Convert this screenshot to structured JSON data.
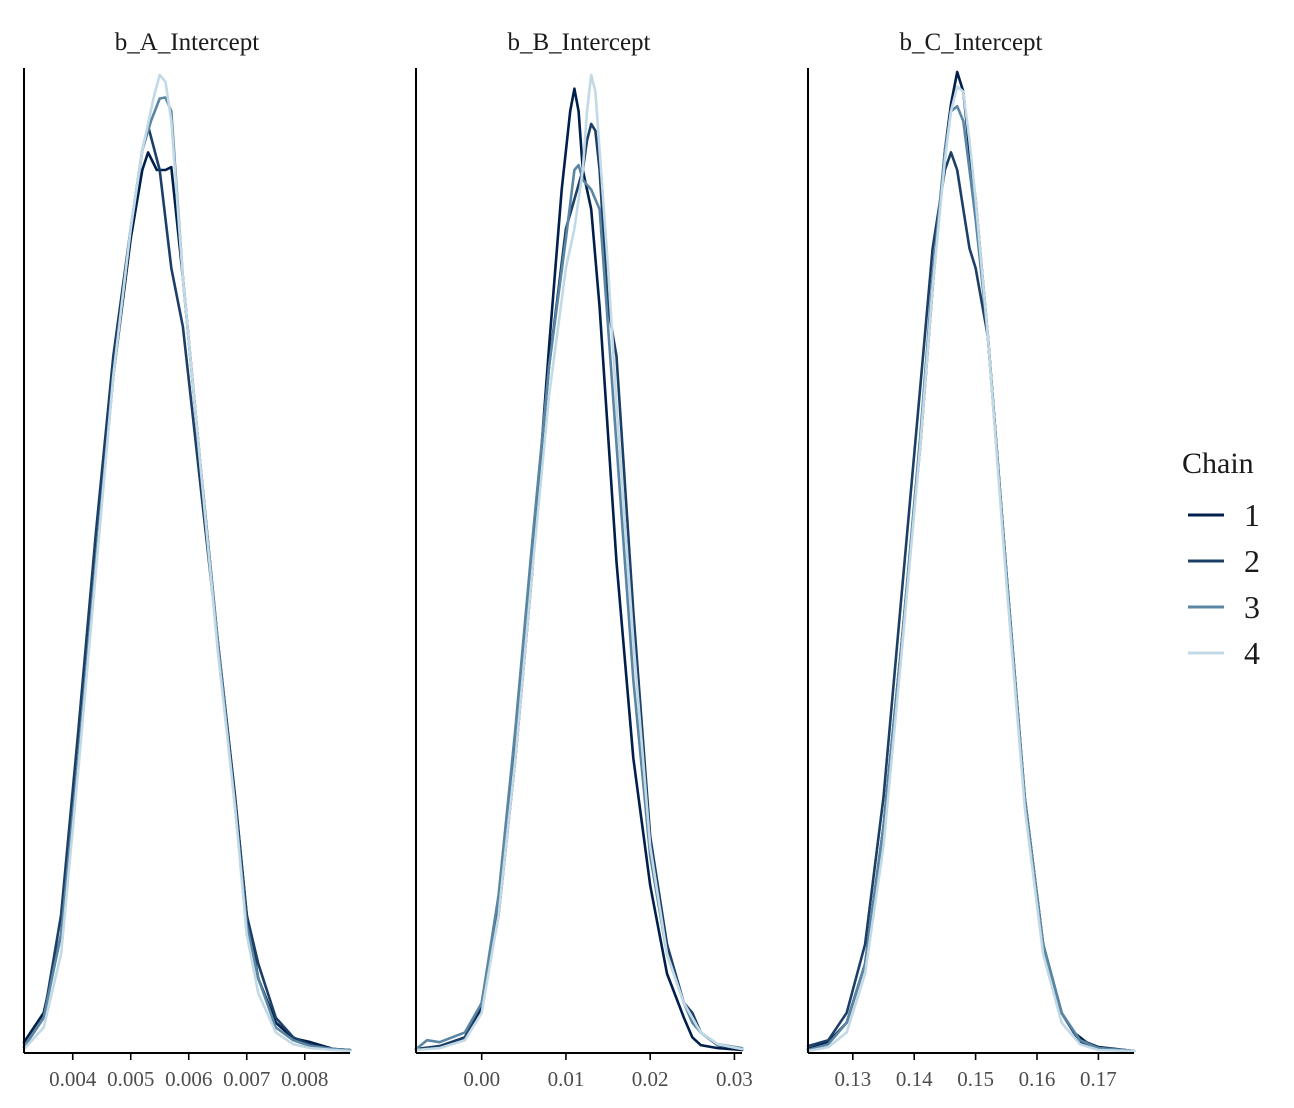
{
  "chart_data": {
    "type": "density",
    "legend": {
      "title": "Chain",
      "position": "right",
      "entries": [
        {
          "label": "1",
          "color": "#011f4b"
        },
        {
          "label": "2",
          "color": "#1b3f66"
        },
        {
          "label": "3",
          "color": "#5a86a3"
        },
        {
          "label": "4",
          "color": "#c2d9e6"
        }
      ]
    },
    "panels": [
      {
        "title": "b_A_Intercept",
        "xlim": [
          0.00316,
          0.00878
        ],
        "ticks": [
          {
            "value": 0.004,
            "label": "0.004"
          },
          {
            "value": 0.005,
            "label": "0.005"
          },
          {
            "value": 0.006,
            "label": "0.006"
          },
          {
            "value": 0.007,
            "label": "0.007"
          },
          {
            "value": 0.008,
            "label": "0.008"
          }
        ],
        "series": [
          {
            "name": "1",
            "x": [
              0.00316,
              0.0035,
              0.0038,
              0.0041,
              0.0044,
              0.0047,
              0.005,
              0.0052,
              0.0053,
              0.00545,
              0.0056,
              0.0057,
              0.0059,
              0.0062,
              0.0065,
              0.0068,
              0.007,
              0.0072,
              0.0075,
              0.0078,
              0.0081,
              0.0085,
              0.00878
            ],
            "y": [
              0.01,
              0.04,
              0.12,
              0.3,
              0.5,
              0.69,
              0.83,
              0.9,
              0.918,
              0.9,
              0.9,
              0.903,
              0.79,
              0.6,
              0.42,
              0.26,
              0.14,
              0.075,
              0.03,
              0.014,
              0.01,
              0.003,
              0.002
            ]
          },
          {
            "name": "2",
            "x": [
              0.00316,
              0.0035,
              0.0038,
              0.0041,
              0.0044,
              0.0047,
              0.005,
              0.0052,
              0.0053,
              0.0055,
              0.0057,
              0.0059,
              0.0062,
              0.0065,
              0.0068,
              0.007,
              0.0072,
              0.0075,
              0.0078,
              0.0081,
              0.0085,
              0.00878
            ],
            "y": [
              0.005,
              0.035,
              0.14,
              0.33,
              0.53,
              0.71,
              0.84,
              0.92,
              0.945,
              0.9,
              0.8,
              0.74,
              0.58,
              0.42,
              0.26,
              0.14,
              0.09,
              0.035,
              0.015,
              0.007,
              0.003,
              0.002
            ]
          },
          {
            "name": "3",
            "x": [
              0.00316,
              0.0035,
              0.0038,
              0.0041,
              0.0044,
              0.0047,
              0.005,
              0.0052,
              0.00535,
              0.0055,
              0.0056,
              0.0057,
              0.0059,
              0.0062,
              0.0065,
              0.0068,
              0.007,
              0.0072,
              0.0075,
              0.0078,
              0.0081,
              0.0085,
              0.00878
            ],
            "y": [
              0.005,
              0.035,
              0.12,
              0.3,
              0.5,
              0.69,
              0.84,
              0.92,
              0.95,
              0.973,
              0.974,
              0.96,
              0.79,
              0.6,
              0.42,
              0.25,
              0.13,
              0.075,
              0.025,
              0.012,
              0.006,
              0.003,
              0.002
            ]
          },
          {
            "name": "4",
            "x": [
              0.00316,
              0.0035,
              0.0038,
              0.0041,
              0.0044,
              0.0047,
              0.005,
              0.0052,
              0.0054,
              0.0055,
              0.0056,
              0.0057,
              0.0059,
              0.0062,
              0.0065,
              0.0068,
              0.007,
              0.0072,
              0.0075,
              0.0078,
              0.0081,
              0.0085,
              0.00878
            ],
            "y": [
              0.003,
              0.025,
              0.1,
              0.29,
              0.49,
              0.69,
              0.84,
              0.92,
              0.975,
              0.997,
              0.99,
              0.95,
              0.79,
              0.6,
              0.41,
              0.25,
              0.12,
              0.06,
              0.02,
              0.008,
              0.004,
              0.002,
              0.001
            ]
          }
        ]
      },
      {
        "title": "b_B_Intercept",
        "xlim": [
          -0.0078,
          0.0309
        ],
        "ticks": [
          {
            "value": 0.0,
            "label": "0.00"
          },
          {
            "value": 0.01,
            "label": "0.01"
          },
          {
            "value": 0.02,
            "label": "0.02"
          },
          {
            "value": 0.03,
            "label": "0.03"
          }
        ],
        "series": [
          {
            "name": "1",
            "x": [
              -0.0078,
              -0.005,
              -0.002,
              0.0,
              0.002,
              0.004,
              0.006,
              0.008,
              0.0095,
              0.0105,
              0.011,
              0.0115,
              0.012,
              0.013,
              0.014,
              0.016,
              0.018,
              0.02,
              0.022,
              0.024,
              0.025,
              0.026,
              0.028,
              0.0309
            ],
            "y": [
              0.003,
              0.005,
              0.015,
              0.045,
              0.14,
              0.3,
              0.49,
              0.72,
              0.88,
              0.96,
              0.983,
              0.96,
              0.9,
              0.86,
              0.76,
              0.5,
              0.3,
              0.17,
              0.08,
              0.035,
              0.015,
              0.007,
              0.004,
              0.002
            ]
          },
          {
            "name": "2",
            "x": [
              -0.0078,
              -0.005,
              -0.002,
              0.0,
              0.002,
              0.004,
              0.006,
              0.008,
              0.01,
              0.011,
              0.012,
              0.0125,
              0.013,
              0.0135,
              0.014,
              0.015,
              0.016,
              0.018,
              0.02,
              0.022,
              0.024,
              0.025,
              0.026,
              0.028,
              0.0309
            ],
            "y": [
              0.003,
              0.006,
              0.015,
              0.05,
              0.15,
              0.32,
              0.51,
              0.7,
              0.84,
              0.87,
              0.9,
              0.93,
              0.947,
              0.94,
              0.9,
              0.76,
              0.71,
              0.45,
              0.22,
              0.11,
              0.05,
              0.04,
              0.02,
              0.007,
              0.003
            ]
          },
          {
            "name": "3",
            "x": [
              -0.0078,
              -0.0065,
              -0.005,
              -0.002,
              0.0,
              0.002,
              0.004,
              0.006,
              0.008,
              0.01,
              0.011,
              0.0115,
              0.012,
              0.013,
              0.014,
              0.016,
              0.018,
              0.02,
              0.022,
              0.024,
              0.025,
              0.026,
              0.028,
              0.0309
            ],
            "y": [
              0.003,
              0.012,
              0.01,
              0.02,
              0.05,
              0.16,
              0.33,
              0.52,
              0.7,
              0.83,
              0.9,
              0.905,
              0.89,
              0.88,
              0.86,
              0.62,
              0.38,
              0.2,
              0.1,
              0.05,
              0.03,
              0.02,
              0.008,
              0.004
            ]
          },
          {
            "name": "4",
            "x": [
              -0.0078,
              -0.005,
              -0.002,
              0.0,
              0.002,
              0.004,
              0.006,
              0.008,
              0.01,
              0.011,
              0.012,
              0.0125,
              0.013,
              0.0135,
              0.014,
              0.015,
              0.016,
              0.018,
              0.02,
              0.022,
              0.024,
              0.026,
              0.028,
              0.0309
            ],
            "y": [
              0.002,
              0.004,
              0.012,
              0.04,
              0.14,
              0.3,
              0.49,
              0.67,
              0.8,
              0.84,
              0.9,
              0.96,
              0.997,
              0.98,
              0.92,
              0.8,
              0.66,
              0.42,
              0.21,
              0.1,
              0.05,
              0.02,
              0.008,
              0.003
            ]
          }
        ]
      },
      {
        "title": "b_C_Intercept",
        "xlim": [
          0.1227,
          0.1758
        ],
        "ticks": [
          {
            "value": 0.13,
            "label": "0.13"
          },
          {
            "value": 0.14,
            "label": "0.14"
          },
          {
            "value": 0.15,
            "label": "0.15"
          },
          {
            "value": 0.16,
            "label": "0.16"
          },
          {
            "value": 0.17,
            "label": "0.17"
          }
        ],
        "series": [
          {
            "name": "1",
            "x": [
              0.1227,
              0.126,
              0.129,
              0.132,
              0.135,
              0.138,
              0.141,
              0.143,
              0.145,
              0.146,
              0.147,
              0.148,
              0.149,
              0.15,
              0.152,
              0.155,
              0.158,
              0.161,
              0.164,
              0.166,
              0.167,
              0.168,
              0.17,
              0.1758
            ],
            "y": [
              0.003,
              0.01,
              0.03,
              0.09,
              0.23,
              0.42,
              0.62,
              0.78,
              0.92,
              0.967,
              1.0,
              0.98,
              0.92,
              0.87,
              0.73,
              0.49,
              0.26,
              0.11,
              0.04,
              0.02,
              0.015,
              0.01,
              0.005,
              0.001
            ]
          },
          {
            "name": "2",
            "x": [
              0.1227,
              0.126,
              0.129,
              0.132,
              0.135,
              0.138,
              0.141,
              0.143,
              0.145,
              0.146,
              0.147,
              0.148,
              0.149,
              0.15,
              0.152,
              0.155,
              0.158,
              0.161,
              0.164,
              0.167,
              0.17,
              0.1758
            ],
            "y": [
              0.006,
              0.012,
              0.04,
              0.11,
              0.26,
              0.47,
              0.68,
              0.82,
              0.9,
              0.918,
              0.9,
              0.86,
              0.82,
              0.8,
              0.73,
              0.49,
              0.26,
              0.11,
              0.04,
              0.01,
              0.004,
              0.001
            ]
          },
          {
            "name": "3",
            "x": [
              0.1227,
              0.126,
              0.129,
              0.132,
              0.135,
              0.138,
              0.141,
              0.143,
              0.145,
              0.146,
              0.147,
              0.148,
              0.149,
              0.15,
              0.152,
              0.155,
              0.158,
              0.161,
              0.164,
              0.167,
              0.17,
              0.1758
            ],
            "y": [
              0.002,
              0.008,
              0.03,
              0.09,
              0.23,
              0.42,
              0.63,
              0.79,
              0.92,
              0.96,
              0.965,
              0.95,
              0.9,
              0.85,
              0.73,
              0.49,
              0.26,
              0.11,
              0.04,
              0.012,
              0.004,
              0.001
            ]
          },
          {
            "name": "4",
            "x": [
              0.1227,
              0.126,
              0.129,
              0.132,
              0.135,
              0.138,
              0.141,
              0.143,
              0.145,
              0.146,
              0.147,
              0.148,
              0.149,
              0.15,
              0.152,
              0.155,
              0.158,
              0.161,
              0.164,
              0.167,
              0.17,
              0.1758
            ],
            "y": [
              0.001,
              0.005,
              0.02,
              0.08,
              0.21,
              0.41,
              0.62,
              0.78,
              0.91,
              0.96,
              0.985,
              0.98,
              0.93,
              0.87,
              0.73,
              0.48,
              0.25,
              0.1,
              0.03,
              0.008,
              0.002,
              0.001
            ]
          }
        ]
      }
    ]
  }
}
